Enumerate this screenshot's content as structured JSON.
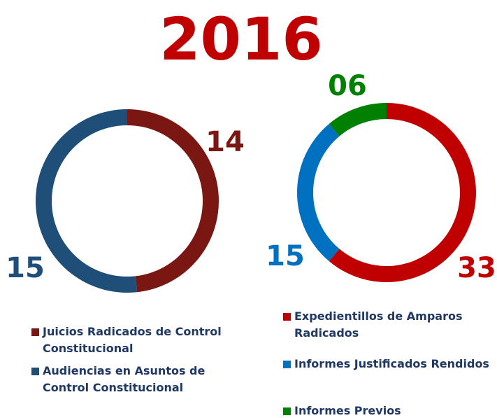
{
  "title": "2016",
  "chart_data": [
    {
      "type": "donut",
      "categories": [
        "Juicios Radicados de Control Constitucional",
        "Audiencias en Asuntos de Control Constitucional"
      ],
      "series": [
        {
          "values": [
            14,
            15
          ],
          "colors": [
            "#7b1712",
            "#1f4e79"
          ]
        }
      ]
    },
    {
      "type": "donut",
      "categories": [
        "Expedientillos de Amparos Radicados",
        "Informes Justificados Rendidos",
        "Informes Previos"
      ],
      "series": [
        {
          "values": [
            33,
            15,
            6
          ],
          "value_labels": [
            "33",
            "15",
            "06"
          ],
          "colors": [
            "#c00000",
            "#0070c0",
            "#008000"
          ]
        }
      ]
    }
  ]
}
